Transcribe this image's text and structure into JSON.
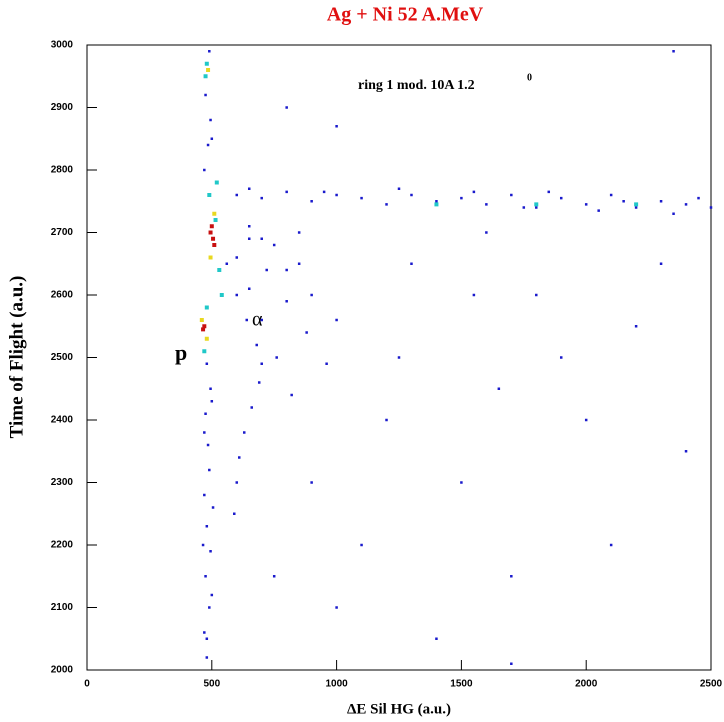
{
  "chart_data": {
    "type": "scatter",
    "title": "Ag + Ni  52 A.MeV",
    "xlabel": "ΔE Sil HG (a.u.)",
    "ylabel": "Time of Flight (a.u.)",
    "annotations": [
      "ring 1 mod. 10A 1.2",
      "0",
      "p",
      "α"
    ],
    "xlim": [
      0,
      2500
    ],
    "xticks": [
      0,
      500,
      1000,
      1500,
      2000,
      2500
    ],
    "ylim": [
      2000,
      3000
    ],
    "yticks": [
      2000,
      2100,
      2200,
      2300,
      2400,
      2500,
      2600,
      2700,
      2800,
      2900,
      3000
    ],
    "series": [
      {
        "color": "#1a1acc",
        "x": [
          480,
          470,
          490,
          475,
          495,
          480,
          470,
          490,
          485,
          475,
          495,
          480,
          470,
          485,
          495,
          475,
          490,
          500,
          480,
          500,
          465,
          505,
          470,
          500,
          600,
          700,
          800,
          900,
          1000,
          1100,
          1200,
          1300,
          1400,
          1500,
          1600,
          1700,
          1800,
          1900,
          2000,
          2100,
          2200,
          2300,
          2400,
          2500,
          650,
          950,
          1250,
          1550,
          1850,
          2150,
          2450,
          2350,
          2050,
          1750,
          650,
          750,
          850,
          700,
          800,
          900,
          1000,
          650,
          720,
          800,
          880,
          960,
          600,
          650,
          700,
          760,
          820,
          560,
          600,
          640,
          680,
          700,
          690,
          660,
          630,
          610,
          600,
          590,
          1200,
          1500,
          1800,
          2100,
          1000,
          1300,
          1650,
          2200,
          900,
          1100,
          1400,
          2400,
          750,
          2000,
          1700,
          2300,
          1900,
          1250,
          1550,
          800,
          1000,
          1700,
          2350,
          1600,
          850
        ],
        "y": [
          2020,
          2060,
          2100,
          2150,
          2190,
          2230,
          2280,
          2320,
          2360,
          2410,
          2450,
          2490,
          2800,
          2840,
          2880,
          2920,
          2990,
          2850,
          2050,
          2120,
          2200,
          2260,
          2380,
          2430,
          2760,
          2755,
          2765,
          2750,
          2760,
          2755,
          2745,
          2760,
          2750,
          2755,
          2745,
          2760,
          2740,
          2755,
          2745,
          2760,
          2740,
          2750,
          2745,
          2740,
          2770,
          2765,
          2770,
          2765,
          2765,
          2750,
          2755,
          2730,
          2735,
          2740,
          2710,
          2680,
          2650,
          2690,
          2640,
          2600,
          2560,
          2690,
          2640,
          2590,
          2540,
          2490,
          2660,
          2610,
          2560,
          2500,
          2440,
          2650,
          2600,
          2560,
          2520,
          2490,
          2460,
          2420,
          2380,
          2340,
          2300,
          2250,
          2400,
          2300,
          2600,
          2200,
          2100,
          2650,
          2450,
          2550,
          2300,
          2200,
          2050,
          2350,
          2150,
          2400,
          2150,
          2650,
          2500,
          2500,
          2600,
          2900,
          2870,
          2010,
          2990,
          2700,
          2700
        ]
      },
      {
        "color": "#20c8c8",
        "x": [
          490,
          520,
          515,
          530,
          480,
          470,
          540,
          1800,
          2200,
          1400,
          480,
          475
        ],
        "y": [
          2760,
          2780,
          2720,
          2640,
          2580,
          2510,
          2600,
          2745,
          2745,
          2745,
          2970,
          2950
        ]
      },
      {
        "color": "#e8d820",
        "x": [
          510,
          495,
          480,
          460,
          485
        ],
        "y": [
          2730,
          2660,
          2530,
          2560,
          2960
        ]
      },
      {
        "color": "#c81010",
        "x": [
          500,
          505,
          495,
          470,
          465,
          510
        ],
        "y": [
          2710,
          2690,
          2700,
          2550,
          2545,
          2680
        ]
      }
    ]
  }
}
